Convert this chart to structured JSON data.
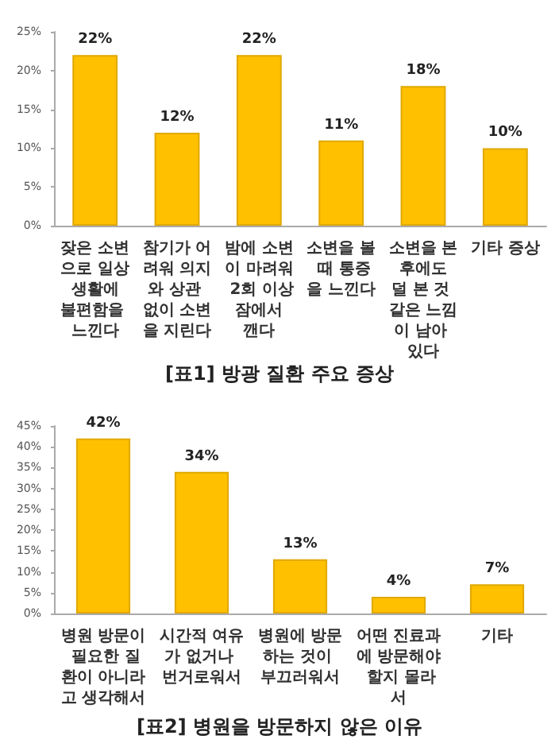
{
  "chart_data": [
    {
      "type": "bar",
      "title": "[표1] 방광 질환 주요 증상",
      "categories": [
        "잦은 소변으로 일상 생활에 불편함을 느낀다",
        "참기가 어려워 의지와 상관 없이 소변을 지린다",
        "밤에 소변이 마려워 2회 이상 잠에서 깬다",
        "소변을 볼 때 통증을 느낀다",
        "소변을 본 후에도 덜 본 것 같은 느낌이 남아 있다",
        "기타 증상"
      ],
      "values": [
        22,
        12,
        22,
        11,
        18,
        10
      ],
      "value_labels": [
        "22%",
        "12%",
        "22%",
        "11%",
        "18%",
        "10%"
      ],
      "color": "#ffc000",
      "ylim": [
        0,
        25
      ],
      "yticks": [
        {
          "value": 0,
          "label": "0%"
        },
        {
          "value": 5,
          "label": "5%"
        },
        {
          "value": 10,
          "label": "10%"
        },
        {
          "value": 15,
          "label": "15%"
        },
        {
          "value": 20,
          "label": "20%"
        },
        {
          "value": 25,
          "label": "25%"
        }
      ]
    },
    {
      "type": "bar",
      "title": "[표2] 병원을 방문하지 않은 이유",
      "categories": [
        "병원 방문이 필요한 질환이 아니라고 생각해서",
        "시간적 여유가 없거나 번거로워서",
        "병원에 방문하는 것이 부끄러워서",
        "어떤 진료과에 방문해야 할지 몰라서",
        "기타"
      ],
      "values": [
        42,
        34,
        13,
        4,
        7
      ],
      "value_labels": [
        "42%",
        "34%",
        "13%",
        "4%",
        "7%"
      ],
      "color": "#ffc000",
      "ylim": [
        0,
        45
      ],
      "yticks": [
        {
          "value": 0,
          "label": "0%"
        },
        {
          "value": 5,
          "label": "5%"
        },
        {
          "value": 10,
          "label": "10%"
        },
        {
          "value": 15,
          "label": "15%"
        },
        {
          "value": 20,
          "label": "20%"
        },
        {
          "value": 25,
          "label": "25%"
        },
        {
          "value": 30,
          "label": "30%"
        },
        {
          "value": 35,
          "label": "35%"
        },
        {
          "value": 40,
          "label": "40%"
        },
        {
          "value": 45,
          "label": "45%"
        }
      ]
    }
  ]
}
